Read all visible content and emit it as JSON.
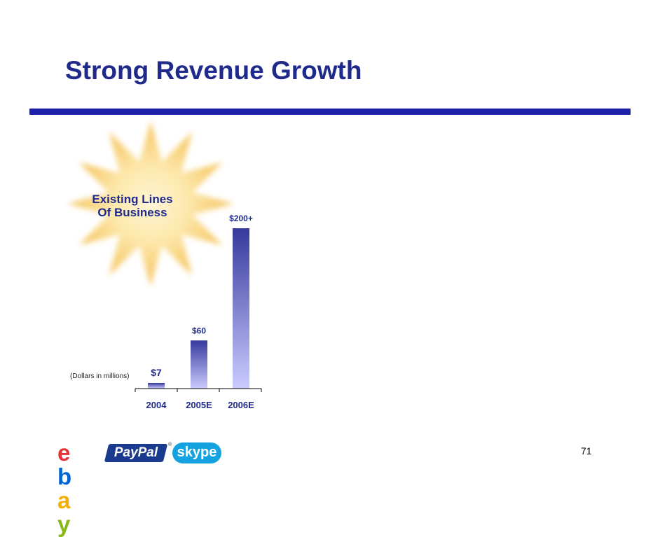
{
  "slide": {
    "title": "Strong Revenue Growth",
    "callout": {
      "line1": "Existing Lines",
      "line2": "Of Business"
    },
    "units_note": "(Dollars in millions)",
    "page_number": "71"
  },
  "logos": {
    "ebay": "ebay",
    "paypal": "PayPal",
    "paypal_mark": "®",
    "skype": "skype"
  },
  "colors": {
    "title": "#1f2a8a",
    "rule": "#1e20a8",
    "bar_top": "#353a9c",
    "bar_bottom": "#cccbff",
    "star_center": "#fff3c0",
    "star_edge": "#f7c766"
  },
  "chart_data": {
    "type": "bar",
    "categories": [
      "2004",
      "2005E",
      "2006E"
    ],
    "values": [
      7,
      60,
      200
    ],
    "data_labels": [
      "$7",
      "$60",
      "$200+"
    ],
    "title": "",
    "xlabel": "",
    "ylabel": "(Dollars in millions)",
    "ylim": [
      0,
      200
    ]
  }
}
